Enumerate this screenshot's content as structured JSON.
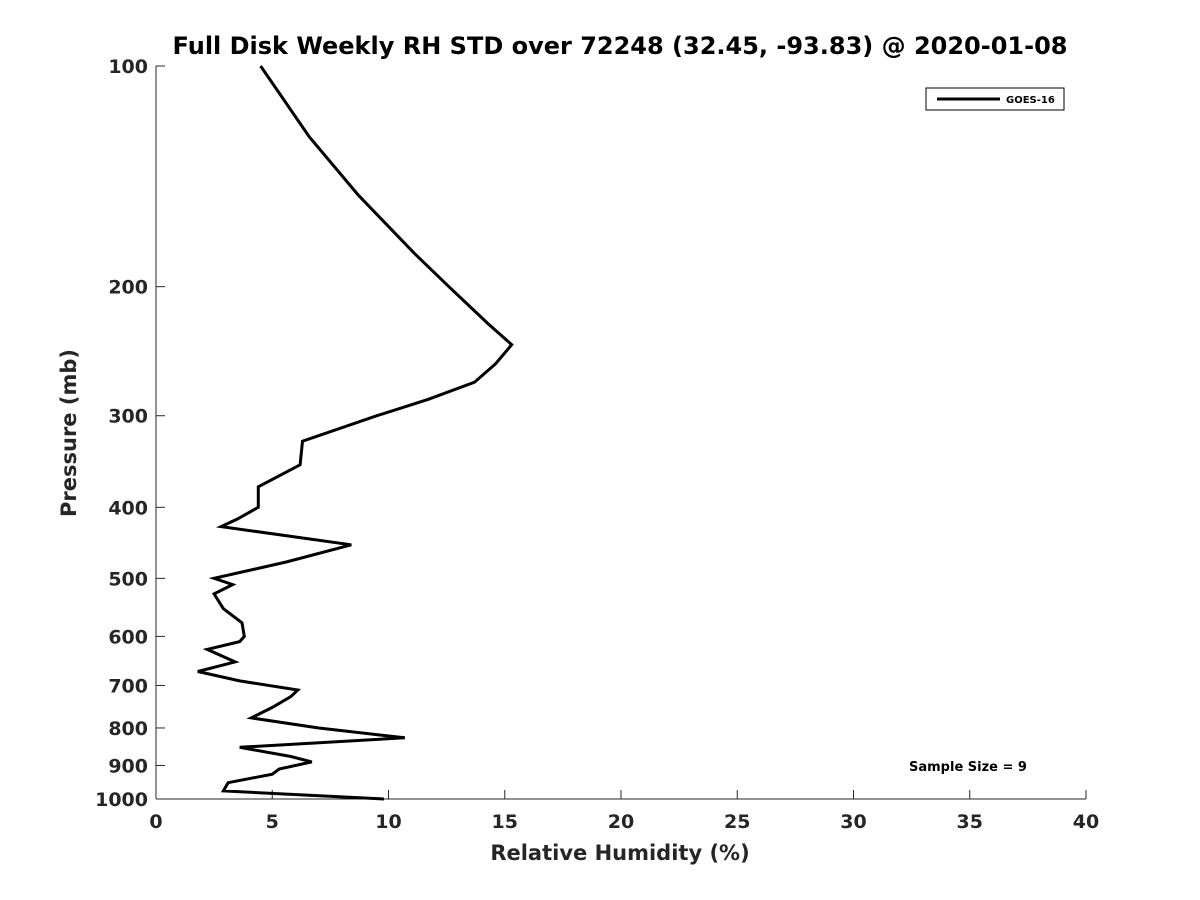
{
  "chart_data": {
    "type": "line",
    "title": "Full Disk Weekly RH STD over 72248 (32.45, -93.83) @ 2020-01-08",
    "xlabel": "Relative Humidity (%)",
    "ylabel": "Pressure (mb)",
    "xlim": [
      0,
      40
    ],
    "ylim": [
      1000,
      100
    ],
    "yscale": "log",
    "y_inverted": true,
    "x_ticks": [
      0,
      5,
      10,
      15,
      20,
      25,
      30,
      35,
      40
    ],
    "y_ticks": [
      100,
      200,
      300,
      400,
      500,
      600,
      700,
      800,
      900,
      1000
    ],
    "grid": false,
    "legend_position": "top-right",
    "series": [
      {
        "name": "GOES-16",
        "color": "#000000",
        "points": [
          [
            4.5,
            100
          ],
          [
            6.6,
            125
          ],
          [
            8.7,
            150
          ],
          [
            11.1,
            180
          ],
          [
            12.6,
            200
          ],
          [
            14.3,
            225
          ],
          [
            15.3,
            240
          ],
          [
            14.6,
            255
          ],
          [
            13.7,
            270
          ],
          [
            11.7,
            285
          ],
          [
            9.5,
            300
          ],
          [
            6.3,
            325
          ],
          [
            6.2,
            350
          ],
          [
            4.4,
            375
          ],
          [
            4.4,
            400
          ],
          [
            3.5,
            415
          ],
          [
            2.8,
            425
          ],
          [
            8.4,
            450
          ],
          [
            5.6,
            475
          ],
          [
            2.5,
            500
          ],
          [
            3.3,
            510
          ],
          [
            2.5,
            525
          ],
          [
            2.9,
            550
          ],
          [
            3.7,
            575
          ],
          [
            3.8,
            600
          ],
          [
            3.6,
            610
          ],
          [
            2.2,
            625
          ],
          [
            3.4,
            650
          ],
          [
            1.8,
            670
          ],
          [
            3.6,
            690
          ],
          [
            6.1,
            710
          ],
          [
            5.8,
            725
          ],
          [
            5.0,
            750
          ],
          [
            4.1,
            775
          ],
          [
            7.0,
            800
          ],
          [
            10.7,
            825
          ],
          [
            3.6,
            850
          ],
          [
            5.8,
            875
          ],
          [
            6.7,
            890
          ],
          [
            5.3,
            910
          ],
          [
            5.0,
            925
          ],
          [
            3.1,
            950
          ],
          [
            2.9,
            975
          ],
          [
            9.8,
            1000
          ]
        ]
      }
    ],
    "annotations": [
      "Sample Size = 9"
    ]
  }
}
